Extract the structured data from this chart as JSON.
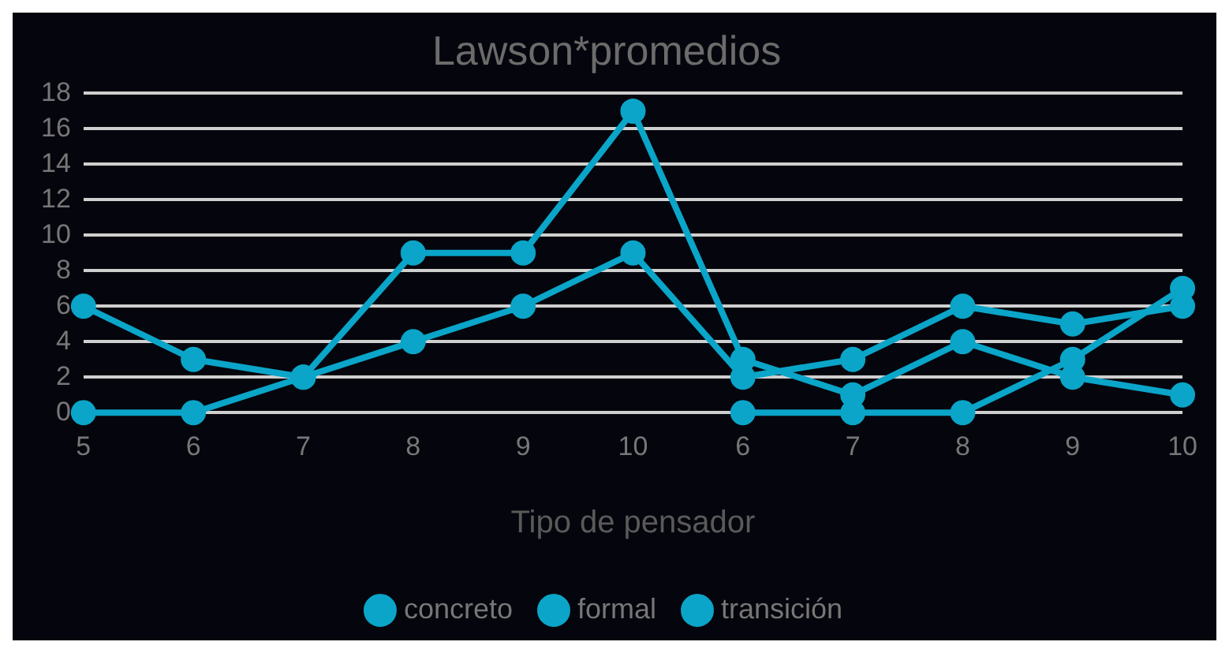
{
  "chart_data": {
    "type": "line",
    "title": "Lawson*promedios",
    "xlabel": "Tipo de pensador",
    "categories": [
      "5",
      "6",
      "7",
      "8",
      "9",
      "10",
      "6",
      "7",
      "8",
      "9",
      "10"
    ],
    "series": [
      {
        "name": "concreto",
        "color": "#0aa5c8",
        "values": [
          6,
          3,
          2,
          9,
          9,
          17,
          3,
          1,
          4,
          2,
          1
        ]
      },
      {
        "name": "formal",
        "color": "#0aa5c8",
        "values": [
          0,
          0,
          2,
          4,
          6,
          9,
          2,
          3,
          6,
          5,
          6
        ]
      },
      {
        "name": "transición",
        "color": "#0aa5c8",
        "values": [
          null,
          null,
          null,
          null,
          null,
          null,
          0,
          0,
          0,
          3,
          7
        ]
      }
    ],
    "ylim": [
      0,
      18
    ],
    "yticks": [
      0,
      2,
      4,
      6,
      8,
      10,
      12,
      14,
      16,
      18
    ],
    "grid": "y",
    "legend": "bottom",
    "marker": "circle",
    "line_style": "solid"
  }
}
